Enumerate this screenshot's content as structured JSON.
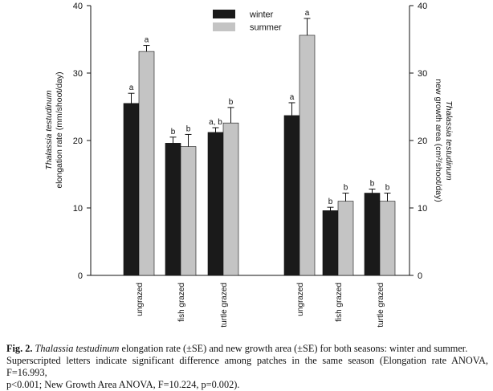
{
  "chart_data": {
    "type": "bar",
    "categories": [
      "ungrazed",
      "fish grazed",
      "turtle grazed",
      "ungrazed",
      "fish grazed",
      "turtle grazed"
    ],
    "series": [
      {
        "name": "winter",
        "color": "#1a1a1a",
        "values": [
          25.5,
          19.6,
          21.2,
          23.7,
          9.6,
          12.2
        ],
        "errors": [
          1.5,
          0.9,
          0.7,
          1.9,
          0.5,
          0.6
        ],
        "labels": [
          "a",
          "b",
          "a, b",
          "a",
          "b",
          "b"
        ]
      },
      {
        "name": "summer",
        "color": "#c4c4c4",
        "values": [
          33.2,
          19.1,
          22.6,
          35.6,
          11.0,
          11.0
        ],
        "errors": [
          0.9,
          1.8,
          2.3,
          2.5,
          1.2,
          1.2
        ],
        "labels": [
          "a",
          "b",
          "b",
          "a",
          "b",
          "b"
        ]
      }
    ],
    "left_axis": {
      "label_line1": "Thalassia testudinum",
      "label_line2": "elongation rate (mm/shoot/day)",
      "ylim": [
        0,
        40
      ],
      "ticks": [
        "0",
        "10",
        "20",
        "30",
        "40"
      ]
    },
    "right_axis": {
      "label_line1": "Thalassia testudinum",
      "label_line2": "new growth area (cm²/shoot/day)",
      "ylim": [
        0,
        40
      ],
      "ticks": [
        "0",
        "10",
        "20",
        "30",
        "40"
      ]
    },
    "legend": {
      "position": "top-center"
    },
    "grid": false
  },
  "caption": {
    "fig": "Fig. 2.",
    "species": "Thalassia testudinum",
    "rest_line1": " elongation rate (±SE) and new growth area (±SE) for both seasons: winter and summer.",
    "line2": "Superscripted letters indicate significant difference among patches in the same season (Elongation rate ANOVA, F=16.993,",
    "line3": "p<0.001; New Growth Area ANOVA, F=10.224, p=0.002)."
  }
}
